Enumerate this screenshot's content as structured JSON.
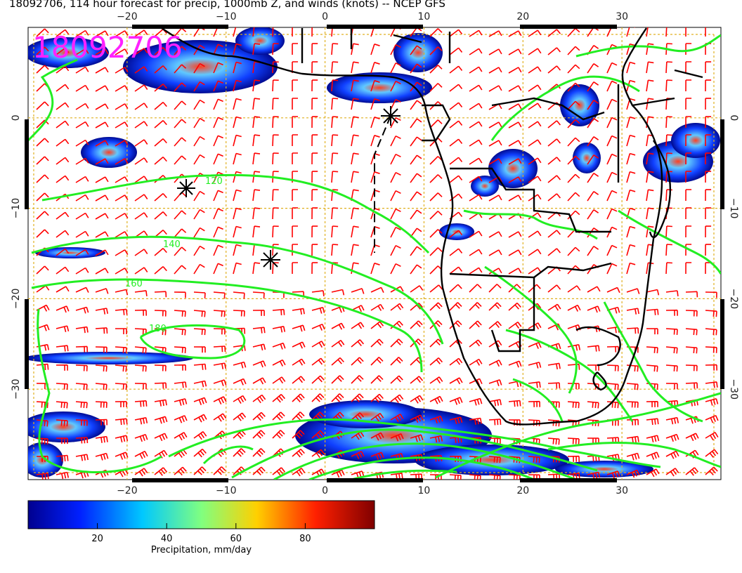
{
  "title": "18092706, 114 hour forecast for precip, 1000mb Z, and winds (knots) -- NCEP GFS",
  "date_stamp": "18092706",
  "x_ticks": [
    "−20",
    "−10",
    "0",
    "10",
    "20",
    "30"
  ],
  "x_tick_values": [
    -20,
    -10,
    0,
    10,
    20,
    30
  ],
  "y_ticks": [
    "0",
    "−10",
    "−20",
    "−30"
  ],
  "y_tick_values": [
    0,
    -10,
    -20,
    -30
  ],
  "lon_range": [
    -30,
    40
  ],
  "lat_range": [
    -40,
    10
  ],
  "contour_labels": [
    "120",
    "140",
    "160",
    "180"
  ],
  "colorbar": {
    "label": "Precipitation, mm/day",
    "ticks": [
      "20",
      "40",
      "60",
      "80"
    ],
    "tick_values": [
      20,
      40,
      60,
      80
    ],
    "range": [
      0,
      100
    ]
  },
  "colors": {
    "title": "#000000",
    "date_stamp": "#ff22ff",
    "wind_barbs": "#ff0000",
    "contours": "#22ee22",
    "coastlines": "#000000",
    "grid": "#e0b020"
  }
}
